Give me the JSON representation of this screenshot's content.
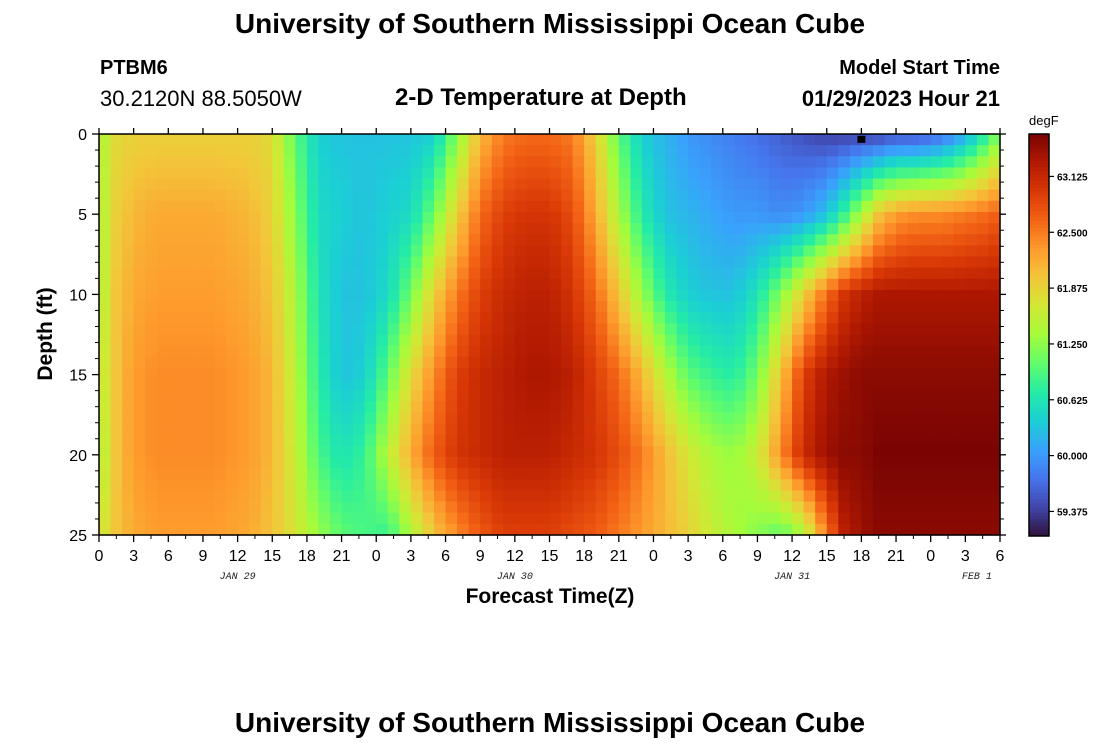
{
  "header": {
    "title": "University of Southern Mississippi Ocean Cube",
    "station_id": "PTBM6",
    "location": "30.2120N  88.5050W",
    "subtitle": "2-D Temperature at Depth",
    "model_start_label": "Model Start Time",
    "model_start_value": "01/29/2023 Hour 21"
  },
  "footer": {
    "title": "University of Southern Mississippi Ocean Cube"
  },
  "chart_data": {
    "type": "heatmap",
    "title": "2-D Temperature at Depth",
    "xlabel": "Forecast Time(Z)",
    "ylabel": "Depth (ft)",
    "x_hours_range": [
      0,
      78
    ],
    "y_depth_range_ft": [
      0,
      25
    ],
    "y_inverted": true,
    "x_tick_labels": [
      "0",
      "3",
      "6",
      "9",
      "12",
      "15",
      "18",
      "21",
      "0",
      "3",
      "6",
      "9",
      "12",
      "15",
      "18",
      "21",
      "0",
      "3",
      "6",
      "9",
      "12",
      "15",
      "18",
      "21",
      "0",
      "3",
      "6"
    ],
    "y_tick_labels": [
      "0",
      "5",
      "10",
      "15",
      "20",
      "25"
    ],
    "date_labels": [
      {
        "label": "JAN 29",
        "hour": 12
      },
      {
        "label": "JAN 30",
        "hour": 36
      },
      {
        "label": "JAN 31",
        "hour": 60
      },
      {
        "label": "FEB 1",
        "hour": 76
      }
    ],
    "colorbar": {
      "unit": "degF",
      "min": 59.1,
      "max": 63.6,
      "tick_labels": [
        "63.125",
        "62.500",
        "61.875",
        "61.250",
        "60.625",
        "60.000",
        "59.375"
      ],
      "tick_values": [
        63.125,
        62.5,
        61.875,
        61.25,
        60.625,
        60.0,
        59.375
      ],
      "colormap": [
        "#30123b",
        "#4145ab",
        "#4675ed",
        "#39a2fc",
        "#1bcfd4",
        "#24eca6",
        "#61fc6c",
        "#a4fc3b",
        "#d1e834",
        "#f3c63a",
        "#fe9b2d",
        "#f36315",
        "#d93806",
        "#b11901",
        "#7a0403"
      ]
    },
    "temperature_profile_f": {
      "columns_hours": [
        0,
        1.5,
        3,
        5,
        7,
        10,
        13,
        15,
        17,
        19,
        21,
        23,
        25,
        27,
        29,
        31,
        33,
        35,
        37,
        39,
        41,
        43,
        45,
        47,
        49,
        51,
        53,
        55,
        57,
        59,
        61,
        63,
        64.5,
        66,
        67.5,
        69,
        71,
        73,
        75,
        77,
        78
      ],
      "depth_ft": [
        0,
        5,
        10,
        15,
        20,
        25
      ],
      "rows": [
        [
          61.4,
          61.8,
          61.9,
          61.9,
          61.9,
          61.9,
          61.9,
          61.8,
          61.0,
          60.4,
          60.3,
          60.3,
          60.3,
          60.3,
          60.4,
          61.2,
          62.1,
          62.5,
          62.6,
          62.6,
          62.5,
          61.9,
          61.0,
          60.4,
          60.2,
          60.0,
          59.9,
          59.8,
          59.7,
          59.6,
          59.5,
          59.4,
          59.4,
          59.4,
          59.4,
          59.5,
          59.5,
          59.7,
          60.1,
          60.8,
          61.2
        ],
        [
          61.4,
          61.9,
          62.1,
          62.2,
          62.2,
          62.2,
          62.1,
          61.9,
          61.2,
          60.5,
          60.4,
          60.3,
          60.4,
          60.5,
          61.1,
          61.9,
          62.6,
          62.9,
          63.0,
          63.0,
          62.8,
          62.2,
          61.4,
          60.7,
          60.3,
          60.2,
          60.1,
          60.0,
          60.0,
          59.9,
          60.0,
          60.3,
          60.8,
          61.4,
          62.0,
          62.3,
          62.4,
          62.4,
          62.5,
          62.6,
          62.7
        ],
        [
          61.4,
          62.0,
          62.2,
          62.3,
          62.3,
          62.3,
          62.2,
          62.0,
          61.4,
          60.6,
          60.3,
          60.3,
          60.5,
          61.1,
          61.9,
          62.5,
          62.9,
          63.1,
          63.2,
          63.2,
          63.0,
          62.6,
          62.0,
          61.3,
          60.7,
          60.4,
          60.3,
          60.3,
          60.6,
          61.2,
          61.9,
          62.6,
          63.0,
          63.2,
          63.3,
          63.3,
          63.3,
          63.3,
          63.3,
          63.3,
          63.3
        ],
        [
          61.5,
          62.0,
          62.3,
          62.4,
          62.4,
          62.4,
          62.3,
          62.1,
          61.5,
          60.7,
          60.3,
          60.4,
          61.0,
          61.8,
          62.4,
          62.9,
          63.1,
          63.2,
          63.3,
          63.3,
          63.2,
          62.9,
          62.6,
          62.1,
          61.5,
          61.0,
          60.8,
          60.7,
          61.1,
          62.0,
          62.9,
          63.3,
          63.4,
          63.5,
          63.5,
          63.5,
          63.5,
          63.5,
          63.5,
          63.5,
          63.5
        ],
        [
          61.4,
          62.0,
          62.3,
          62.4,
          62.4,
          62.4,
          62.3,
          62.1,
          61.6,
          60.9,
          60.6,
          60.8,
          61.5,
          62.2,
          62.7,
          63.0,
          63.1,
          63.2,
          63.2,
          63.2,
          63.1,
          63.0,
          62.8,
          62.5,
          62.1,
          61.7,
          61.4,
          61.3,
          61.6,
          62.4,
          63.1,
          63.4,
          63.5,
          63.5,
          63.6,
          63.6,
          63.6,
          63.6,
          63.6,
          63.6,
          63.6
        ],
        [
          61.6,
          62.0,
          62.2,
          62.3,
          62.3,
          62.3,
          62.2,
          62.0,
          61.7,
          61.3,
          61.0,
          60.9,
          60.8,
          61.4,
          62.0,
          62.4,
          62.7,
          62.9,
          62.9,
          62.9,
          62.8,
          62.7,
          62.5,
          62.3,
          62.1,
          61.9,
          61.6,
          61.4,
          61.2,
          61.0,
          61.4,
          62.5,
          63.2,
          63.4,
          63.5,
          63.5,
          63.5,
          63.5,
          63.5,
          63.5,
          63.5
        ]
      ]
    },
    "marker": {
      "hour": 66,
      "depth_ft": 0.3,
      "color": "#000000"
    }
  }
}
